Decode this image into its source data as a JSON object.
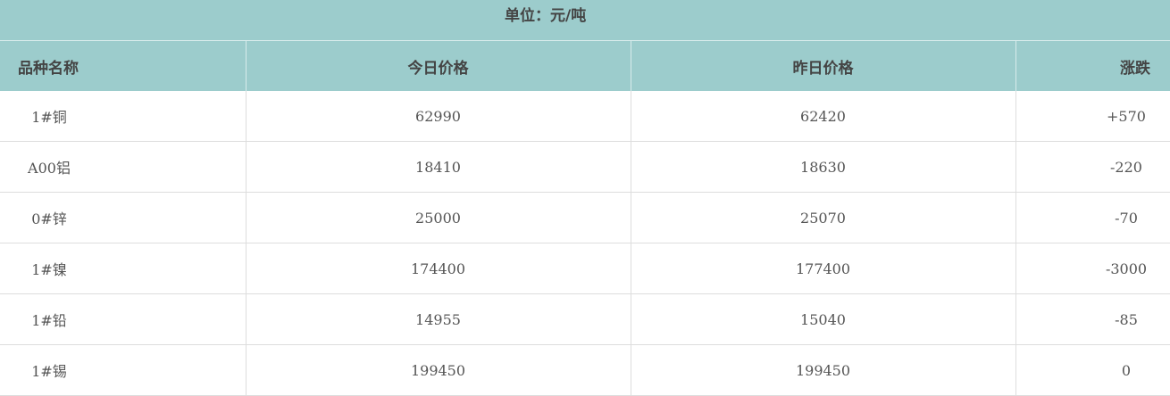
{
  "unit": "单位：元/吨",
  "columns": [
    "品种名称",
    "今日价格",
    "昨日价格",
    "涨跌"
  ],
  "rows": [
    {
      "name": "1#铜",
      "today": "62990",
      "yesterday": "62420",
      "change": "+570"
    },
    {
      "name": "A00铝",
      "today": "18410",
      "yesterday": "18630",
      "change": "-220"
    },
    {
      "name": "0#锌",
      "today": "25000",
      "yesterday": "25070",
      "change": "-70"
    },
    {
      "name": "1#镍",
      "today": "174400",
      "yesterday": "177400",
      "change": "-3000"
    },
    {
      "name": "1#铅",
      "today": "14955",
      "yesterday": "15040",
      "change": "-85"
    },
    {
      "name": "1#锡",
      "today": "199450",
      "yesterday": "199450",
      "change": "0"
    }
  ],
  "colors": {
    "header_bg": "#9ccccc",
    "border": "#dddddd"
  }
}
